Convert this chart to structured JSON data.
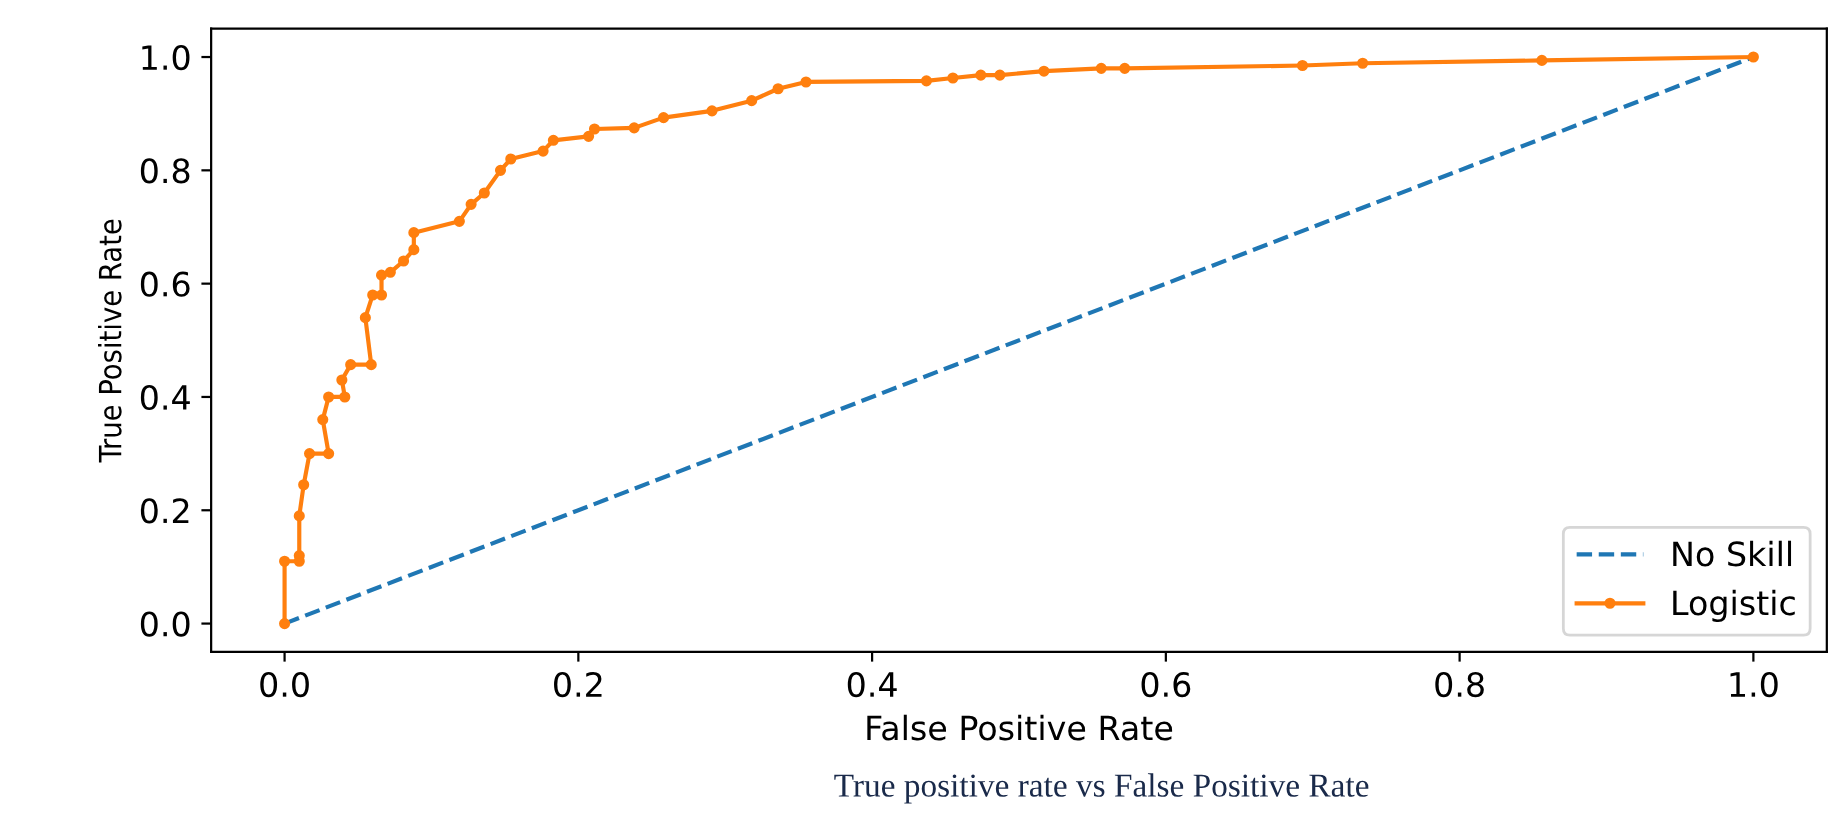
{
  "chart_data": {
    "type": "line",
    "xlabel": "False Positive Rate",
    "ylabel": "True Positive Rate",
    "annotations": [
      "True positive rate vs False Positive Rate"
    ],
    "xlim": [
      -0.05,
      1.05
    ],
    "ylim": [
      -0.05,
      1.05
    ],
    "xticks": [
      {
        "value": 0,
        "label": "0.0"
      },
      0.2,
      0.4,
      0.6,
      0.8,
      {
        "value": 1,
        "label": "1.0"
      }
    ],
    "yticks": [
      {
        "value": 0,
        "label": "0.0"
      },
      0.2,
      0.4,
      0.6,
      0.8,
      {
        "value": 1,
        "label": "1.0"
      }
    ],
    "legend": "bottom right",
    "grid": false,
    "series": [
      {
        "name": "No Skill",
        "color": "#1f77b4",
        "line_style": "dashed",
        "marker": "none",
        "x": [
          0,
          1
        ],
        "values": [
          0,
          1
        ]
      },
      {
        "name": "Logistic",
        "color": "#ff7f0e",
        "line_style": "solid",
        "marker": "circle",
        "x": [
          0,
          0,
          0.01,
          0.01,
          0.01,
          0.013,
          0.017,
          0.03,
          0.026,
          0.03,
          0.041,
          0.039,
          0.045,
          0.059,
          0.055,
          0.06,
          0.066,
          0.066,
          0.072,
          0.081,
          0.088,
          0.088,
          0.119,
          0.127,
          0.136,
          0.147,
          0.154,
          0.176,
          0.183,
          0.207,
          0.211,
          0.238,
          0.258,
          0.291,
          0.318,
          0.336,
          0.355,
          0.437,
          0.455,
          0.474,
          0.487,
          0.517,
          0.556,
          0.572,
          0.693,
          0.734,
          0.856,
          1.0
        ],
        "values": [
          0,
          0.11,
          0.11,
          0.12,
          0.19,
          0.245,
          0.3,
          0.3,
          0.36,
          0.4,
          0.4,
          0.43,
          0.457,
          0.457,
          0.54,
          0.58,
          0.58,
          0.615,
          0.62,
          0.64,
          0.66,
          0.69,
          0.71,
          0.74,
          0.76,
          0.8,
          0.82,
          0.834,
          0.853,
          0.86,
          0.873,
          0.875,
          0.893,
          0.905,
          0.923,
          0.944,
          0.956,
          0.958,
          0.963,
          0.968,
          0.968,
          0.975,
          0.98,
          0.98,
          0.985,
          0.989,
          0.994,
          1.0
        ]
      }
    ]
  }
}
